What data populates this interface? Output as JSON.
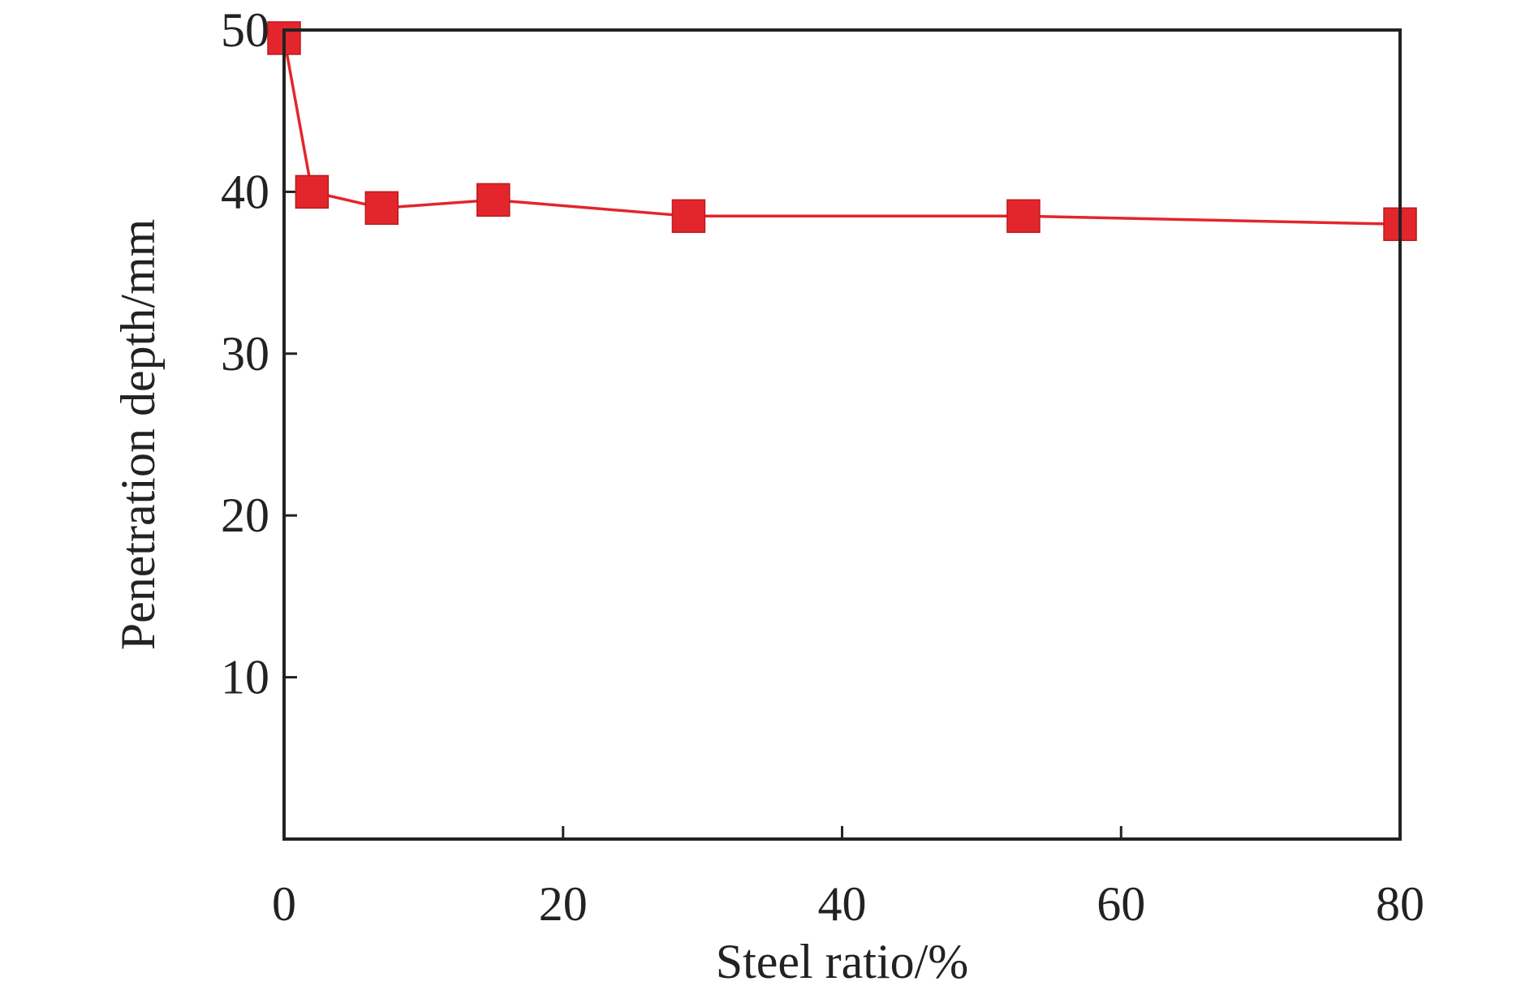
{
  "chart_data": {
    "type": "line",
    "xlabel": "Steel ratio/%",
    "ylabel": "Penetration depth/mm",
    "xlim": [
      0,
      80
    ],
    "ylim": [
      0,
      50
    ],
    "x_ticks": [
      0,
      20,
      40,
      60,
      80
    ],
    "y_ticks": [
      10,
      20,
      30,
      40,
      50
    ],
    "x_tick_labels": [
      "0",
      "20",
      "40",
      "60",
      "80"
    ],
    "y_tick_labels": [
      "10",
      "20",
      "30",
      "40",
      "50"
    ],
    "grid": false,
    "legend": "none",
    "series": [
      {
        "color": "#e3262b",
        "marker": "square",
        "x": [
          0,
          2,
          7,
          15,
          29,
          53,
          80
        ],
        "y": [
          49.5,
          40.0,
          39.0,
          39.5,
          38.5,
          38.5,
          38.0
        ]
      }
    ]
  }
}
